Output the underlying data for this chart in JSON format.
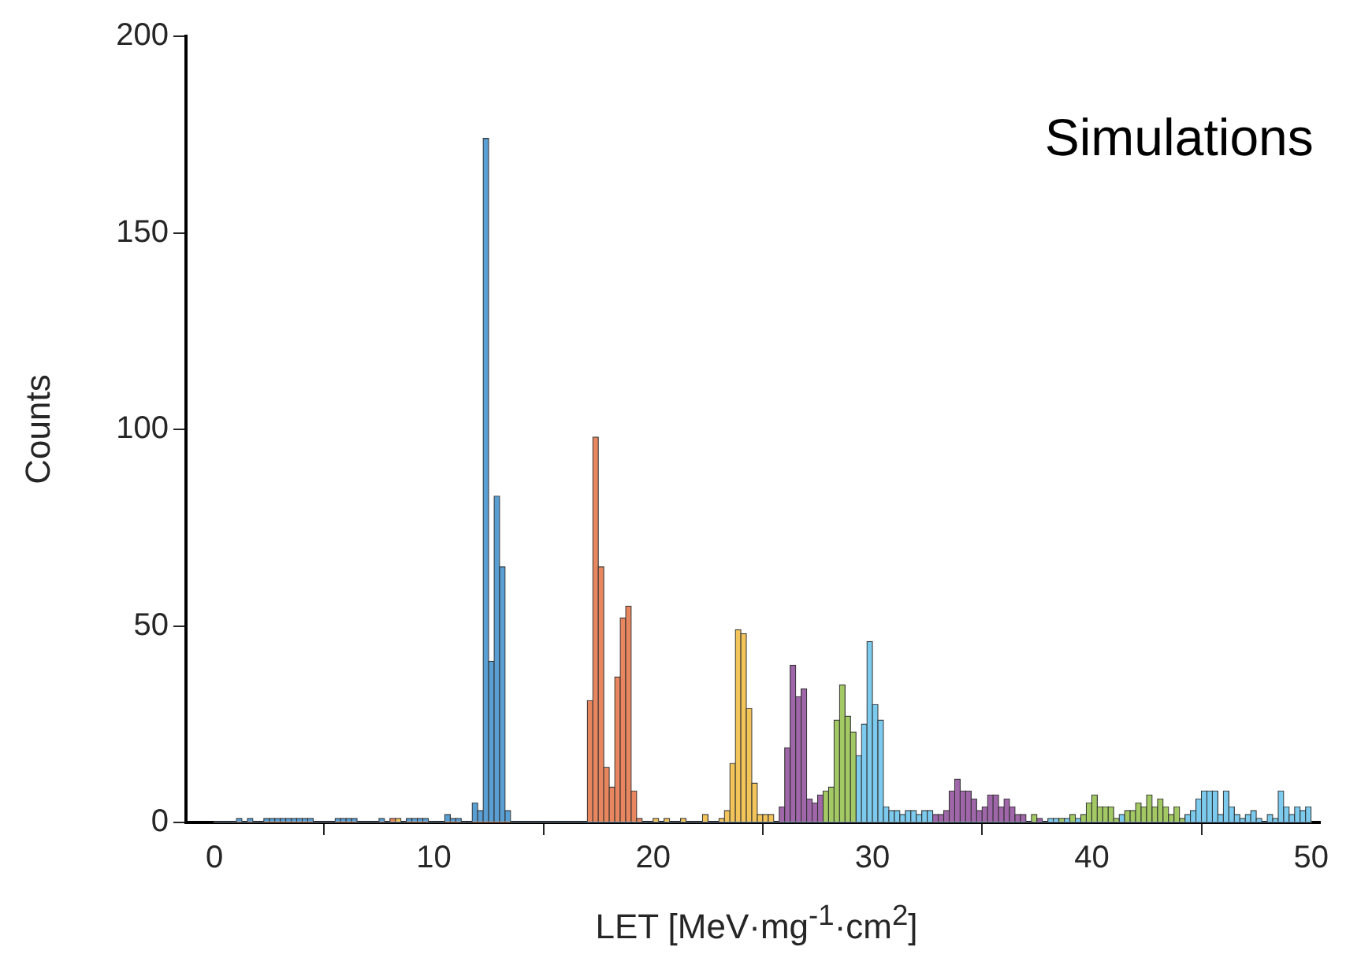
{
  "chart_data": {
    "type": "histogram",
    "xlabel": "LET [MeV·mg$^{-1}$·cm$^{2}$]",
    "ylabel": "Counts",
    "annotations": [
      "Simulations"
    ],
    "xlim": [
      -1.3,
      50.4
    ],
    "xticks": [
      0,
      10,
      20,
      30,
      40,
      50
    ],
    "ylim": [
      0,
      200
    ],
    "yticks": [
      0,
      50,
      100,
      150,
      200
    ],
    "grid": false,
    "legend": false,
    "bins": [
      0,
      0.25,
      0.5,
      0.75,
      1,
      1.25,
      1.5,
      1.75,
      2,
      2.25,
      2.5,
      2.75,
      3,
      3.25,
      3.5,
      3.75,
      4,
      4.25,
      4.5,
      4.75,
      5,
      5.25,
      5.5,
      5.75,
      6,
      6.25,
      6.5,
      6.75,
      7,
      7.25,
      7.5,
      7.75,
      8,
      8.25,
      8.5,
      8.75,
      9,
      9.25,
      9.5,
      9.75,
      10,
      10.25,
      10.5,
      10.75,
      11,
      11.25,
      11.5,
      11.75,
      12,
      12.25,
      12.5,
      12.75,
      13,
      13.25,
      13.5,
      13.75,
      14,
      14.25,
      14.5,
      14.75,
      15,
      15.25,
      15.5,
      15.75,
      16,
      16.25,
      16.5,
      16.75,
      17,
      17.25,
      17.5,
      17.75,
      18,
      18.25,
      18.5,
      18.75,
      19,
      19.25,
      19.5,
      19.75,
      20,
      20.25,
      20.5,
      20.75,
      21,
      21.25,
      21.5,
      21.75,
      22,
      22.25,
      22.5,
      22.75,
      23,
      23.25,
      23.5,
      23.75,
      24,
      24.25,
      24.5,
      24.75,
      25,
      25.25,
      25.5,
      25.75,
      26,
      26.25,
      26.5,
      26.75,
      27,
      27.25,
      27.5,
      27.75,
      28,
      28.25,
      28.5,
      28.75,
      29,
      29.25,
      29.5,
      29.75,
      30,
      30.25,
      30.5,
      30.75,
      31,
      31.25,
      31.5,
      31.75,
      32,
      32.25,
      32.5,
      32.75,
      33,
      33.25,
      33.5,
      33.75,
      34,
      34.25,
      34.5,
      34.75,
      35,
      35.25,
      35.5,
      35.75,
      36,
      36.25,
      36.5,
      36.75,
      37,
      37.25,
      37.5,
      37.75,
      38,
      38.25,
      38.5,
      38.75,
      39,
      39.25,
      39.5,
      39.75,
      40,
      40.25,
      40.5,
      40.75,
      41,
      41.25,
      41.5,
      41.75,
      42,
      42.25,
      42.5,
      42.75,
      43,
      43.25,
      43.5,
      43.75,
      44,
      44.25,
      44.5,
      44.75,
      45,
      45.25,
      45.5,
      45.75,
      46,
      46.25,
      46.5,
      46.75,
      47,
      47.25,
      47.5,
      47.75,
      48,
      48.25,
      48.5,
      48.75,
      49,
      49.25,
      49.5,
      49.75,
      50
    ],
    "series": [
      {
        "color": "#5a9fd4",
        "values": [
          0,
          0,
          0,
          0,
          1,
          0,
          1,
          0,
          0,
          1,
          1,
          1,
          1,
          1,
          1,
          1,
          1,
          1,
          0,
          0,
          0,
          0,
          1,
          1,
          1,
          1,
          0,
          0,
          0,
          0,
          1,
          0,
          0,
          0,
          0,
          1,
          1,
          1,
          1,
          0,
          0,
          0,
          2,
          1,
          1,
          0,
          0,
          5,
          3,
          174,
          41,
          83,
          65,
          3,
          0,
          0,
          0,
          0,
          0,
          0,
          0,
          0,
          0,
          0,
          0,
          0,
          0,
          0,
          0,
          0,
          0,
          0,
          0,
          0,
          0,
          0,
          0,
          0,
          0,
          0,
          0,
          0,
          0,
          0,
          0,
          0,
          0,
          0,
          0,
          0,
          0,
          0,
          0,
          0,
          0,
          0,
          0,
          0,
          0,
          0,
          0,
          0,
          0,
          0,
          0,
          0,
          0,
          0,
          0,
          0,
          0,
          0,
          0,
          0,
          0,
          0,
          0,
          0,
          0,
          0,
          0,
          0,
          0,
          0,
          0,
          0,
          0,
          0,
          0,
          0,
          0,
          0,
          0,
          0,
          0,
          0,
          0,
          0,
          0,
          0,
          0,
          0,
          0,
          0,
          0,
          0,
          0,
          0,
          0,
          0,
          0,
          0,
          0,
          0,
          0,
          0,
          0,
          0,
          0,
          0,
          0,
          0,
          0,
          0,
          0,
          0,
          0,
          0,
          0,
          0,
          0,
          0,
          0,
          0,
          0,
          0,
          0,
          0,
          0,
          0,
          0,
          0,
          0,
          0,
          0,
          0,
          0,
          0,
          0,
          0,
          0,
          0,
          0,
          0,
          0,
          0,
          0,
          0,
          0,
          0
        ]
      },
      {
        "color": "#e8875f",
        "values": [
          0,
          0,
          0,
          0,
          0,
          0,
          0,
          0,
          0,
          0,
          0,
          0,
          0,
          0,
          0,
          0,
          0,
          0,
          0,
          0,
          0,
          0,
          0,
          0,
          0,
          0,
          0,
          0,
          0,
          0,
          0,
          0,
          1,
          0,
          0,
          0,
          0,
          0,
          0,
          0,
          0,
          0,
          0,
          0,
          0,
          0,
          0,
          0,
          0,
          0,
          0,
          0,
          0,
          0,
          0,
          0,
          0,
          0,
          0,
          0,
          0,
          0,
          0,
          0,
          0,
          0,
          0,
          0,
          31,
          98,
          65,
          14,
          9,
          37,
          52,
          55,
          8,
          1,
          0,
          0,
          0,
          0,
          0,
          0,
          0,
          0,
          0,
          0,
          0,
          0,
          0,
          0,
          0,
          0,
          0,
          0,
          0,
          0,
          0,
          0,
          0,
          0,
          0,
          0,
          0,
          0,
          0,
          0,
          0,
          0,
          0,
          0,
          0,
          0,
          0,
          0,
          0,
          0,
          0,
          0,
          0,
          0,
          0,
          0,
          0,
          0,
          0,
          0,
          0,
          0,
          0,
          0,
          0,
          0,
          0,
          0,
          0,
          0,
          0,
          0,
          0,
          0,
          0,
          0,
          0,
          0,
          0,
          0,
          0,
          0,
          0,
          0,
          0,
          0,
          0,
          0,
          0,
          0,
          0,
          0,
          0,
          0,
          0,
          0,
          0,
          0,
          0,
          0,
          0,
          0,
          0,
          0,
          0,
          0,
          0,
          0,
          0,
          0,
          0,
          0,
          0,
          0,
          0,
          0,
          0,
          0,
          0,
          0,
          0,
          0,
          0,
          0,
          0,
          0,
          0,
          0,
          0,
          0,
          0,
          0
        ]
      },
      {
        "color": "#f2c45a",
        "values": [
          0,
          0,
          0,
          0,
          0,
          0,
          0,
          0,
          0,
          0,
          0,
          0,
          0,
          0,
          0,
          0,
          0,
          0,
          0,
          0,
          0,
          0,
          0,
          0,
          0,
          0,
          0,
          0,
          0,
          0,
          0,
          0,
          0,
          1,
          0,
          0,
          0,
          0,
          0,
          0,
          0,
          0,
          0,
          0,
          0,
          0,
          0,
          0,
          0,
          0,
          0,
          0,
          0,
          0,
          0,
          0,
          0,
          0,
          0,
          0,
          0,
          0,
          0,
          0,
          0,
          0,
          0,
          0,
          0,
          0,
          0,
          0,
          0,
          0,
          0,
          0,
          0,
          0,
          0,
          0,
          1,
          0,
          1,
          0,
          0,
          1,
          0,
          0,
          0,
          2,
          0,
          0,
          1,
          3,
          15,
          49,
          48,
          29,
          10,
          2,
          2,
          2,
          0,
          0,
          0,
          0,
          0,
          0,
          0,
          0,
          0,
          0,
          0,
          0,
          0,
          0,
          0,
          0,
          0,
          0,
          0,
          0,
          0,
          0,
          0,
          0,
          0,
          0,
          0,
          0,
          0,
          0,
          0,
          0,
          0,
          0,
          0,
          0,
          0,
          0,
          0,
          0,
          0,
          0,
          0,
          0,
          0,
          0,
          0,
          0,
          0,
          0,
          0,
          0,
          0,
          0,
          0,
          0,
          0,
          0,
          0,
          0,
          0,
          0,
          0,
          0,
          0,
          0,
          0,
          0,
          0,
          0,
          0,
          0,
          0,
          0,
          0,
          0,
          0,
          0,
          0,
          0,
          0,
          0,
          0,
          0,
          0,
          0,
          0,
          0,
          0,
          0,
          0,
          0,
          0,
          0,
          0,
          0,
          0,
          0
        ]
      },
      {
        "color": "#a066aa",
        "values": [
          0,
          0,
          0,
          0,
          0,
          0,
          0,
          0,
          0,
          0,
          0,
          0,
          0,
          0,
          0,
          0,
          0,
          0,
          0,
          0,
          0,
          0,
          0,
          0,
          0,
          0,
          0,
          0,
          0,
          0,
          0,
          0,
          0,
          0,
          0,
          0,
          0,
          0,
          0,
          0,
          0,
          0,
          0,
          0,
          0,
          0,
          0,
          0,
          0,
          0,
          0,
          0,
          0,
          0,
          0,
          0,
          0,
          0,
          0,
          0,
          0,
          0,
          0,
          0,
          0,
          0,
          0,
          0,
          0,
          0,
          0,
          0,
          0,
          0,
          0,
          0,
          0,
          0,
          0,
          0,
          0,
          0,
          0,
          0,
          0,
          0,
          0,
          0,
          0,
          0,
          0,
          0,
          0,
          0,
          0,
          0,
          0,
          0,
          0,
          0,
          0,
          0,
          0,
          4,
          19,
          40,
          32,
          34,
          6,
          5,
          7,
          0,
          0,
          0,
          0,
          0,
          0,
          0,
          0,
          0,
          0,
          0,
          0,
          0,
          0,
          0,
          0,
          0,
          0,
          0,
          0,
          2,
          2,
          3,
          8,
          11,
          8,
          8,
          6,
          3,
          4,
          7,
          7,
          4,
          6,
          4,
          2,
          2,
          0,
          0,
          1,
          0,
          0,
          0,
          0,
          0,
          0,
          0,
          0,
          0,
          0,
          0,
          0,
          0,
          0,
          0,
          0,
          0,
          0,
          0,
          0,
          0,
          0,
          0,
          0,
          0,
          0,
          0,
          0,
          0,
          0,
          0,
          0,
          0,
          0,
          0,
          0,
          0,
          0,
          0,
          0,
          0,
          0,
          0,
          0,
          0,
          0,
          0,
          0,
          0
        ]
      },
      {
        "color": "#a3c964",
        "values": [
          0,
          0,
          0,
          0,
          0,
          0,
          0,
          0,
          0,
          0,
          0,
          0,
          0,
          0,
          0,
          0,
          0,
          0,
          0,
          0,
          0,
          0,
          0,
          0,
          0,
          0,
          0,
          0,
          0,
          0,
          0,
          0,
          0,
          0,
          0,
          0,
          0,
          0,
          0,
          0,
          0,
          0,
          0,
          0,
          0,
          0,
          0,
          0,
          0,
          0,
          0,
          0,
          0,
          0,
          0,
          0,
          0,
          0,
          0,
          0,
          0,
          0,
          0,
          0,
          0,
          0,
          0,
          0,
          0,
          0,
          0,
          0,
          0,
          0,
          0,
          0,
          0,
          0,
          0,
          0,
          0,
          0,
          0,
          0,
          0,
          0,
          0,
          0,
          0,
          0,
          0,
          0,
          0,
          0,
          0,
          0,
          0,
          0,
          0,
          0,
          0,
          0,
          0,
          0,
          0,
          0,
          0,
          0,
          0,
          0,
          0,
          8,
          9,
          26,
          35,
          27,
          23,
          0,
          0,
          0,
          0,
          0,
          0,
          0,
          0,
          0,
          0,
          0,
          0,
          0,
          0,
          0,
          0,
          0,
          0,
          0,
          0,
          0,
          0,
          0,
          0,
          0,
          0,
          0,
          0,
          0,
          0,
          0,
          0,
          2,
          0,
          0,
          0,
          0,
          1,
          0,
          2,
          0,
          2,
          5,
          7,
          4,
          4,
          4,
          1,
          0,
          3,
          3,
          5,
          4,
          7,
          4,
          6,
          4,
          2,
          4,
          1,
          0,
          0,
          0,
          0,
          0,
          0,
          0,
          0,
          0,
          0,
          0,
          0,
          0,
          0,
          0,
          0,
          0,
          0,
          0,
          0,
          0,
          0,
          0
        ]
      },
      {
        "color": "#7ccbee",
        "values": [
          0,
          0,
          0,
          0,
          0,
          0,
          0,
          0,
          0,
          0,
          0,
          0,
          0,
          0,
          0,
          0,
          0,
          0,
          0,
          0,
          0,
          0,
          0,
          0,
          0,
          0,
          0,
          0,
          0,
          0,
          0,
          0,
          0,
          0,
          0,
          0,
          0,
          0,
          0,
          0,
          0,
          0,
          0,
          0,
          0,
          0,
          0,
          0,
          0,
          0,
          0,
          0,
          0,
          0,
          0,
          0,
          0,
          0,
          0,
          0,
          0,
          0,
          0,
          0,
          0,
          0,
          0,
          0,
          0,
          0,
          0,
          0,
          0,
          0,
          0,
          0,
          0,
          0,
          0,
          0,
          0,
          0,
          0,
          0,
          0,
          0,
          0,
          0,
          0,
          0,
          0,
          0,
          0,
          0,
          0,
          0,
          0,
          0,
          0,
          0,
          0,
          0,
          0,
          0,
          0,
          0,
          0,
          0,
          0,
          0,
          0,
          0,
          0,
          0,
          0,
          0,
          0,
          17,
          25,
          46,
          30,
          26,
          4,
          3,
          3,
          2,
          3,
          3,
          2,
          3,
          3,
          0,
          0,
          0,
          0,
          0,
          0,
          0,
          0,
          0,
          0,
          0,
          0,
          0,
          0,
          0,
          0,
          0,
          0,
          0,
          0,
          0,
          1,
          1,
          0,
          1,
          0,
          1,
          0,
          0,
          0,
          0,
          0,
          0,
          0,
          2,
          0,
          0,
          0,
          0,
          0,
          0,
          0,
          0,
          0,
          0,
          0,
          2,
          3,
          6,
          8,
          8,
          8,
          2,
          8,
          4,
          2,
          1,
          2,
          3,
          1,
          0,
          2,
          1,
          8,
          4,
          2,
          4,
          3,
          4
        ]
      }
    ]
  }
}
